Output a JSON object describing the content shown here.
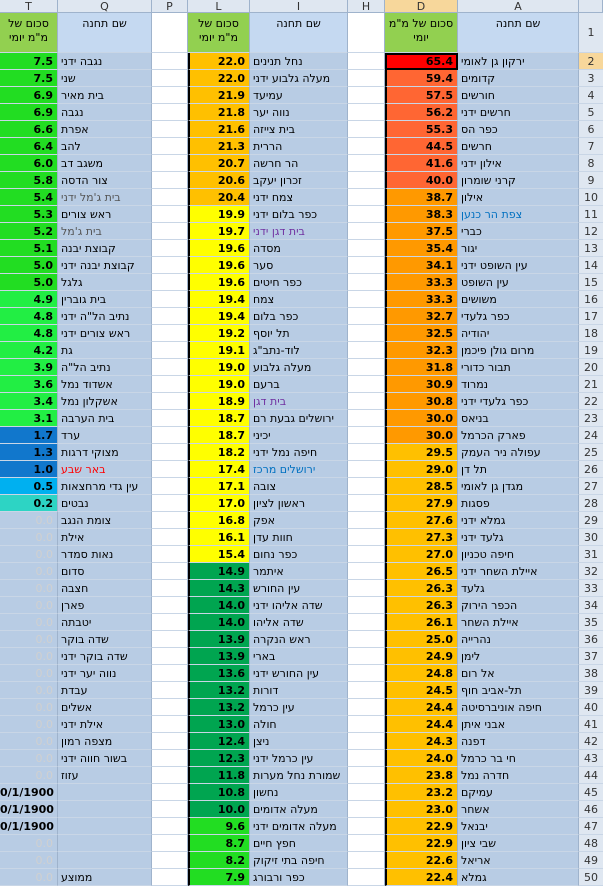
{
  "colors": {
    "cell_bg": "#b8cce4",
    "header_title_bg": "#c5d9f1",
    "green_header_bg": "#92d050",
    "red": "#ff0000",
    "orange_red": "#ff6633",
    "orange": "#ff9900",
    "amber": "#ffc000",
    "yellow": "#ffff00",
    "dark_green": "#00a550",
    "green": "#22dd22",
    "light_green": "#44f044",
    "lime": "#22ee44",
    "blue": "#1177cc",
    "sky": "#00b0f0",
    "teal": "#2dd4c4",
    "pale_zero_text": "#d0d0d0",
    "purple_text": "#7030a0",
    "link_blue": "#0070c0",
    "red_text": "#ff0000"
  },
  "column_letters": [
    "T",
    "Q",
    "P",
    "L",
    "I",
    "H",
    "D",
    "A"
  ],
  "headers": {
    "avg_label": "סכום של מ\"מ יומי",
    "station_label": "שם תחנה",
    "row_number": "1"
  },
  "rows": [
    {
      "n": "2",
      "t": "7.5",
      "q": "נגבה ידני",
      "l": "22.0",
      "i": "נחל תנינים",
      "d": "65.4",
      "a": "ירקון גן לאומי"
    },
    {
      "n": "3",
      "t": "7.5",
      "q": "שני",
      "l": "22.0",
      "i": "מעלה גלבוע ידני",
      "d": "59.4",
      "a": "קדומים"
    },
    {
      "n": "4",
      "t": "6.9",
      "q": "בית מאיר",
      "l": "21.9",
      "i": "עמיעד",
      "d": "57.5",
      "a": "חורשים"
    },
    {
      "n": "5",
      "t": "6.9",
      "q": "נגבה",
      "l": "21.8",
      "i": "נווה יער",
      "d": "56.2",
      "a": "חרשים ידני"
    },
    {
      "n": "6",
      "t": "6.6",
      "q": "אפרת",
      "l": "21.6",
      "i": "בית צייזה",
      "d": "55.3",
      "a": "כפר הס"
    },
    {
      "n": "7",
      "t": "6.4",
      "q": "להב",
      "l": "21.3",
      "i": "הררית",
      "d": "44.5",
      "a": "חרשים"
    },
    {
      "n": "8",
      "t": "6.0",
      "q": "משגב דב",
      "l": "20.7",
      "i": "הר חרשה",
      "d": "41.6",
      "a": "אילון ידני"
    },
    {
      "n": "9",
      "t": "5.8",
      "q": "צור הדסה",
      "l": "20.6",
      "i": "זכרון יעקב",
      "d": "40.0",
      "a": "קרני שומרון"
    },
    {
      "n": "10",
      "t": "5.4",
      "q": "בית ג'מל ידני",
      "l": "20.4",
      "i": "צמח ידני",
      "d": "38.7",
      "a": "אילון"
    },
    {
      "n": "11",
      "t": "5.3",
      "q": "ראש צורים",
      "l": "19.9",
      "i": "כפר בלום ידני",
      "d": "38.3",
      "a": "צפת הר כנען"
    },
    {
      "n": "12",
      "t": "5.2",
      "q": "בית ג'מל",
      "l": "19.7",
      "i": "בית דגן ידני",
      "d": "37.5",
      "a": "כברי"
    },
    {
      "n": "13",
      "t": "5.1",
      "q": "קבוצת יבנה",
      "l": "19.6",
      "i": "מסדה",
      "d": "35.4",
      "a": "יגור"
    },
    {
      "n": "14",
      "t": "5.0",
      "q": "קבוצת יבנה ידני",
      "l": "19.6",
      "i": "סער",
      "d": "34.1",
      "a": "עין השופט ידני"
    },
    {
      "n": "15",
      "t": "5.0",
      "q": "גלגל",
      "l": "19.6",
      "i": "כפר חיטים",
      "d": "33.3",
      "a": "עין השופט"
    },
    {
      "n": "16",
      "t": "4.9",
      "q": "בית גוברין",
      "l": "19.4",
      "i": "צמח",
      "d": "33.3",
      "a": "משושים"
    },
    {
      "n": "17",
      "t": "4.8",
      "q": "נתיב הל\"ה ידני",
      "l": "19.4",
      "i": "כפר בלום",
      "d": "32.7",
      "a": "כפר גלעדי"
    },
    {
      "n": "18",
      "t": "4.8",
      "q": "ראש צורים ידני",
      "l": "19.2",
      "i": "תל יוסף",
      "d": "32.5",
      "a": "יהודיה"
    },
    {
      "n": "19",
      "t": "4.2",
      "q": "גת",
      "l": "19.1",
      "i": "לוד-נתב\"ג",
      "d": "32.3",
      "a": "מרום גולן פיכמן"
    },
    {
      "n": "20",
      "t": "3.9",
      "q": "נתיב הל\"ה",
      "l": "19.0",
      "i": "מעלה גלבוע",
      "d": "31.8",
      "a": "תבור כדורי"
    },
    {
      "n": "21",
      "t": "3.6",
      "q": "אשדוד נמל",
      "l": "19.0",
      "i": "ברעם",
      "d": "30.9",
      "a": "נמרוד"
    },
    {
      "n": "22",
      "t": "3.4",
      "q": "אשקלון נמל",
      "l": "18.9",
      "i": "בית דגן",
      "d": "30.8",
      "a": "כפר גלעדי ידני"
    },
    {
      "n": "23",
      "t": "3.1",
      "q": "בית הערבה",
      "l": "18.7",
      "i": "ירושלים גבעת רם",
      "d": "30.0",
      "a": "בניאס"
    },
    {
      "n": "24",
      "t": "1.7",
      "q": "ערד",
      "l": "18.7",
      "i": "יכיני",
      "d": "30.0",
      "a": "פארק הכרמל"
    },
    {
      "n": "25",
      "t": "1.3",
      "q": "מצוקי דרגות",
      "l": "18.2",
      "i": "חיפה נמל ידני",
      "d": "29.5",
      "a": "עפולה ניר העמק"
    },
    {
      "n": "26",
      "t": "1.0",
      "q": "באר שבע",
      "l": "17.4",
      "i": "ירושלים מרכז",
      "d": "29.0",
      "a": "תל דן"
    },
    {
      "n": "27",
      "t": "0.5",
      "q": "עין גדי מרחצאות",
      "l": "17.1",
      "i": "צובה",
      "d": "28.5",
      "a": "מגדן גן לאומי"
    },
    {
      "n": "28",
      "t": "0.2",
      "q": "נבטים",
      "l": "17.0",
      "i": "ראשון לציון",
      "d": "27.9",
      "a": "פסגות"
    },
    {
      "n": "29",
      "t": "0.0",
      "q": "צומת הנגב",
      "l": "16.8",
      "i": "אפק",
      "d": "27.6",
      "a": "גמלא ידני"
    },
    {
      "n": "30",
      "t": "0.0",
      "q": "אילת",
      "l": "16.1",
      "i": "חוות עדן",
      "d": "27.3",
      "a": "גלעד ידני"
    },
    {
      "n": "31",
      "t": "0.0",
      "q": "נאות סמדר",
      "l": "15.4",
      "i": "כפר נחום",
      "d": "27.0",
      "a": "חיפה טכניון"
    },
    {
      "n": "32",
      "t": "0.0",
      "q": "סדום",
      "l": "14.9",
      "i": "איתמר",
      "d": "26.5",
      "a": "איילת השחר ידני"
    },
    {
      "n": "33",
      "t": "0.0",
      "q": "חצבה",
      "l": "14.3",
      "i": "עין החורש",
      "d": "26.3",
      "a": "גלעד"
    },
    {
      "n": "34",
      "t": "0.0",
      "q": "פארן",
      "l": "14.0",
      "i": "שדה אליהו ידני",
      "d": "26.3",
      "a": "הכפר הירוק"
    },
    {
      "n": "35",
      "t": "0.0",
      "q": "יטבתה",
      "l": "14.0",
      "i": "שדה אליהו",
      "d": "26.1",
      "a": "איילת השחר"
    },
    {
      "n": "36",
      "t": "0.0",
      "q": "שדה בוקר",
      "l": "13.9",
      "i": "ראש הנקרה",
      "d": "25.0",
      "a": "נהרייה"
    },
    {
      "n": "37",
      "t": "0.0",
      "q": "שדה בוקר ידני",
      "l": "13.9",
      "i": "בארי",
      "d": "24.9",
      "a": "לימן"
    },
    {
      "n": "38",
      "t": "0.0",
      "q": "נווה יער ידני",
      "l": "13.6",
      "i": "עין החורש ידני",
      "d": "24.8",
      "a": "אל רום"
    },
    {
      "n": "39",
      "t": "0.0",
      "q": "עבדת",
      "l": "13.2",
      "i": "דורות",
      "d": "24.5",
      "a": "תל-אביב חוף"
    },
    {
      "n": "40",
      "t": "0.0",
      "q": "אשלים",
      "l": "13.2",
      "i": "עין כרמל",
      "d": "24.4",
      "a": "חיפה אוניברסיטה"
    },
    {
      "n": "41",
      "t": "0.0",
      "q": "אילת ידני",
      "l": "13.0",
      "i": "חולה",
      "d": "24.4",
      "a": "אבני איתן"
    },
    {
      "n": "42",
      "t": "0.0",
      "q": "מצפה רמון",
      "l": "12.4",
      "i": "ניצן",
      "d": "24.3",
      "a": "דפנה"
    },
    {
      "n": "43",
      "t": "0.0",
      "q": "בשור חווה ידני",
      "l": "12.3",
      "i": "עין כרמל ידני",
      "d": "24.0",
      "a": "חי בר כרמל"
    },
    {
      "n": "44",
      "t": "0.0",
      "q": "עזוז",
      "l": "11.8",
      "i": "שמורת נחל מערות",
      "d": "23.8",
      "a": "חדרה נמל"
    },
    {
      "n": "45",
      "t": "0/1/1900 0:00",
      "q": "",
      "l": "10.8",
      "i": "נחשון",
      "d": "23.2",
      "a": "עמיקם"
    },
    {
      "n": "46",
      "t": "0/1/1900 0:00",
      "q": "",
      "l": "10.0",
      "i": "מעלה אדומים",
      "d": "23.0",
      "a": "אשחר"
    },
    {
      "n": "47",
      "t": "0/1/1900 0:00",
      "q": "",
      "l": "9.6",
      "i": "מעלה אדומים ידני",
      "d": "22.9",
      "a": "יבנאל"
    },
    {
      "n": "48",
      "t": "0.0",
      "q": "",
      "l": "8.7",
      "i": "חפץ חיים",
      "d": "22.9",
      "a": "שבי ציון"
    },
    {
      "n": "49",
      "t": "0.0",
      "q": "",
      "l": "8.2",
      "i": "חיפה בתי זיקוק",
      "d": "22.6",
      "a": "אריאל"
    },
    {
      "n": "50",
      "t": "0.0",
      "q": "ממוצע",
      "l": "7.9",
      "i": "כפר ורבורג",
      "d": "22.4",
      "a": "גמלא"
    }
  ]
}
